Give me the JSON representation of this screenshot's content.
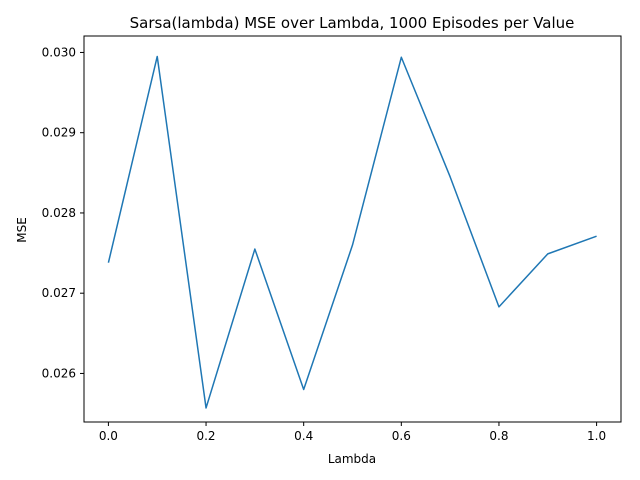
{
  "chart_data": {
    "type": "line",
    "title": "Sarsa(lambda) MSE over Lambda, 1000 Episodes per Value",
    "xlabel": "Lambda",
    "ylabel": "MSE",
    "x": [
      0.0,
      0.1,
      0.2,
      0.3,
      0.4,
      0.5,
      0.6,
      0.7,
      0.8,
      0.9,
      1.0
    ],
    "series": [
      {
        "values": [
          0.02738,
          0.02995,
          0.02557,
          0.02755,
          0.0258,
          0.0276,
          0.02994,
          0.02845,
          0.02683,
          0.02749,
          0.02771
        ],
        "color": "#1f77b4"
      }
    ],
    "xlim": [
      -0.05,
      1.05
    ],
    "ylim": [
      0.025395,
      0.030205
    ],
    "xticks": [
      0.0,
      0.2,
      0.4,
      0.6,
      0.8,
      1.0
    ],
    "xtick_labels": [
      "0.0",
      "0.2",
      "0.4",
      "0.6",
      "0.8",
      "1.0"
    ],
    "yticks": [
      0.026,
      0.027,
      0.028,
      0.029,
      0.03
    ],
    "ytick_labels": [
      "0.026",
      "0.027",
      "0.028",
      "0.029",
      "0.030"
    ],
    "grid": false,
    "legend": false
  }
}
